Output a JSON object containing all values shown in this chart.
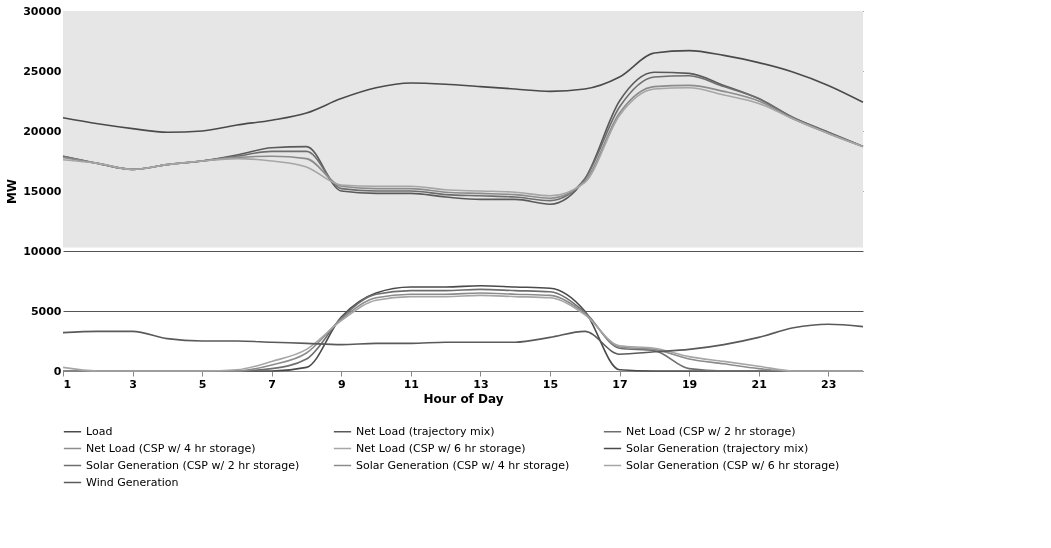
{
  "chart_data": {
    "type": "line",
    "xlabel": "Hour of Day",
    "ylabel": "MW",
    "x": [
      1,
      2,
      3,
      4,
      5,
      6,
      7,
      8,
      9,
      10,
      11,
      12,
      13,
      14,
      15,
      16,
      17,
      18,
      19,
      20,
      21,
      22,
      23,
      24
    ],
    "xlim": [
      1,
      24
    ],
    "xticks": [
      1,
      3,
      5,
      7,
      9,
      11,
      13,
      15,
      17,
      19,
      21,
      23
    ],
    "ylim": [
      0,
      30000
    ],
    "yticks": [
      0,
      5000,
      10000,
      15000,
      20000,
      25000,
      30000
    ],
    "grid": "y",
    "legend": "bottom",
    "marker": "none",
    "line_style": "solid",
    "bands": [
      {
        "axis": "y",
        "from": 10300,
        "to": 30000,
        "color": "#e6e6e6"
      }
    ],
    "series": [
      {
        "name": "Load",
        "color": "#4a4a4a",
        "values": [
          21100,
          20600,
          20200,
          19900,
          20000,
          20500,
          20900,
          21500,
          22700,
          23600,
          24000,
          23900,
          23700,
          23500,
          23300,
          23500,
          24500,
          26500,
          26700,
          26300,
          25700,
          24900,
          23800,
          22400
        ]
      },
      {
        "name": "Net Load (trajectory mix)",
        "color": "#5a5a5a",
        "values": [
          17900,
          17300,
          16800,
          17200,
          17500,
          18000,
          18600,
          18700,
          15000,
          14800,
          14800,
          14500,
          14300,
          14300,
          13900,
          16000,
          22500,
          24900,
          24800,
          23800,
          22700,
          21100,
          19900,
          18700
        ]
      },
      {
        "name": "Net Load (CSP w/ 2 hr storage)",
        "color": "#6e6e6e",
        "values": [
          17900,
          17300,
          16800,
          17200,
          17500,
          17900,
          18300,
          18300,
          15200,
          15000,
          15000,
          14700,
          14600,
          14500,
          14200,
          16000,
          22000,
          24500,
          24600,
          23700,
          22700,
          21100,
          19900,
          18700
        ]
      },
      {
        "name": "Net Load (CSP w/ 4 hr storage)",
        "color": "#8c8c8c",
        "values": [
          17800,
          17300,
          16800,
          17200,
          17500,
          17800,
          17900,
          17700,
          15400,
          15200,
          15200,
          14900,
          14800,
          14700,
          14400,
          15800,
          21500,
          23700,
          23800,
          23300,
          22500,
          21000,
          19800,
          18700
        ]
      },
      {
        "name": "Net Load (CSP w/ 6 hr storage)",
        "color": "#a6a6a6",
        "values": [
          17600,
          17300,
          16800,
          17200,
          17500,
          17700,
          17500,
          17000,
          15500,
          15400,
          15400,
          15100,
          15000,
          14900,
          14600,
          15700,
          21300,
          23500,
          23600,
          23000,
          22300,
          21000,
          19800,
          18700
        ]
      },
      {
        "name": "Solar Generation (trajectory mix)",
        "color": "#4a4a4a",
        "values": [
          0,
          0,
          0,
          0,
          0,
          0,
          0,
          300,
          4500,
          6500,
          7000,
          7000,
          7100,
          7000,
          6900,
          5000,
          100,
          0,
          0,
          0,
          0,
          0,
          0,
          0
        ]
      },
      {
        "name": "Solar Generation (CSP w/ 2 hr storage)",
        "color": "#6e6e6e",
        "values": [
          0,
          0,
          0,
          0,
          0,
          0,
          200,
          1000,
          4400,
          6400,
          6700,
          6700,
          6800,
          6700,
          6600,
          4900,
          1900,
          1700,
          200,
          0,
          0,
          0,
          0,
          0
        ]
      },
      {
        "name": "Solar Generation (CSP w/ 4 hr storage)",
        "color": "#8c8c8c",
        "values": [
          0,
          0,
          0,
          0,
          0,
          0,
          500,
          1500,
          4300,
          6100,
          6400,
          6400,
          6500,
          6400,
          6300,
          4800,
          2000,
          1800,
          1000,
          600,
          200,
          0,
          0,
          0
        ]
      },
      {
        "name": "Solar Generation (CSP w/ 6 hr storage)",
        "color": "#a6a6a6",
        "values": [
          300,
          0,
          0,
          0,
          0,
          100,
          800,
          1800,
          4200,
          5900,
          6200,
          6200,
          6300,
          6200,
          6100,
          4700,
          2100,
          1900,
          1200,
          800,
          400,
          0,
          0,
          0
        ]
      },
      {
        "name": "Wind Generation",
        "color": "#5a5a5a",
        "values": [
          3200,
          3300,
          3300,
          2700,
          2500,
          2500,
          2400,
          2300,
          2200,
          2300,
          2300,
          2400,
          2400,
          2400,
          2800,
          3300,
          1400,
          1600,
          1800,
          2200,
          2800,
          3600,
          3900,
          3700
        ]
      }
    ]
  }
}
